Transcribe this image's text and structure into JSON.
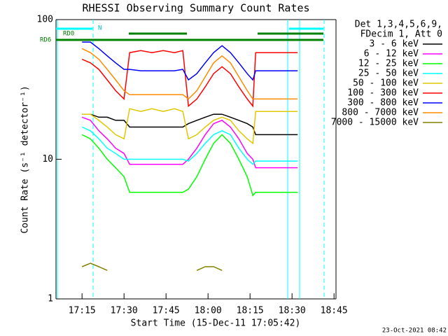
{
  "chart_data": {
    "type": "line",
    "title": "RHESSI Observing Summary Count Rates",
    "xlabel": "Start Time (15-Dec-11 17:05:42)",
    "ylabel": "Count Rate (s⁻¹ detector⁻¹)",
    "legend_title": [
      "Det 1,3,4,5,6,9,",
      "FDecim 1, Att 0"
    ],
    "annotations": [
      "N",
      "RD0",
      "RD6"
    ],
    "timestamp": "23-Oct-2021 08:42",
    "log_y": true,
    "xlim": [
      "17:05:42",
      "18:45:42"
    ],
    "xticks": [
      "17:15",
      "17:30",
      "17:45",
      "18:00",
      "18:15",
      "18:30",
      "18:45"
    ],
    "ylim": [
      1,
      100
    ],
    "yticks": [
      1,
      10,
      100
    ],
    "x": [
      "17:15",
      "17:18",
      "17:21",
      "17:24",
      "17:27",
      "17:30",
      "17:32",
      "17:36",
      "17:40",
      "17:44",
      "17:48",
      "17:51",
      "17:53",
      "17:56",
      "17:59",
      "18:02",
      "18:05",
      "18:08",
      "18:11",
      "18:14",
      "18:16",
      "18:17",
      "18:21",
      "18:25",
      "18:29",
      "18:32"
    ],
    "series": [
      {
        "name": "3 - 6 keV",
        "color": "#000000",
        "values": [
          21,
          21,
          20,
          20,
          19,
          19,
          17,
          17,
          17,
          17,
          17,
          17,
          18,
          19,
          20,
          21,
          21,
          20,
          19,
          18,
          17,
          15,
          15,
          15,
          15,
          15
        ]
      },
      {
        "name": "6 - 12 keV",
        "color": "#ff00ff",
        "values": [
          20,
          19,
          16,
          14,
          12,
          11,
          9.2,
          9.2,
          9.2,
          9.2,
          9.2,
          9.2,
          10,
          12,
          15,
          18,
          19,
          17,
          14,
          11,
          10,
          8.7,
          8.7,
          8.7,
          8.7,
          8.7
        ]
      },
      {
        "name": "12 - 25 keV",
        "color": "#00ff00",
        "values": [
          15,
          14,
          12,
          10,
          8.7,
          7.5,
          5.8,
          5.8,
          5.8,
          5.8,
          5.8,
          5.8,
          6.1,
          7.5,
          10,
          13,
          15,
          13,
          10,
          7.5,
          5.5,
          5.8,
          5.8,
          5.8,
          5.8,
          5.8
        ]
      },
      {
        "name": "25 - 50 keV",
        "color": "#00ffff",
        "values": [
          17,
          16,
          14,
          12,
          11,
          10,
          10,
          10,
          10,
          10,
          10,
          10,
          9.7,
          11,
          13,
          15,
          16,
          15,
          12,
          10,
          9.2,
          9.7,
          9.7,
          9.7,
          9.7,
          9.7
        ]
      },
      {
        "name": "50 - 100 keV",
        "color": "#e0c800",
        "values": [
          21,
          21,
          19,
          17,
          15,
          14,
          23,
          22,
          23,
          22,
          23,
          22,
          14,
          15,
          17,
          19,
          20,
          19,
          16,
          14,
          13,
          22,
          22,
          22,
          22,
          22
        ]
      },
      {
        "name": "100 - 300 keV",
        "color": "#ff0000",
        "values": [
          52,
          49,
          44,
          37,
          31,
          27,
          58,
          60,
          58,
          60,
          58,
          60,
          24,
          27,
          33,
          41,
          46,
          41,
          33,
          27,
          24,
          58,
          58,
          58,
          58,
          58
        ]
      },
      {
        "name": "300 - 800 keV",
        "color": "#0000ff",
        "values": [
          69,
          69,
          62,
          55,
          49,
          44,
          44,
          43,
          43,
          43,
          43,
          44,
          37,
          41,
          49,
          58,
          65,
          58,
          49,
          41,
          37,
          43,
          43,
          43,
          43,
          43
        ]
      },
      {
        "name": "800 - 7000 keV",
        "color": "#ff8c00",
        "values": [
          62,
          58,
          52,
          44,
          37,
          31,
          29,
          29,
          29,
          29,
          29,
          29,
          27,
          31,
          39,
          49,
          55,
          49,
          39,
          31,
          27,
          27,
          27,
          27,
          27,
          27
        ]
      },
      {
        "name": "7000 - 15000 keV",
        "color": "#808000",
        "values": [
          1.7,
          1.8,
          1.7,
          1.6,
          null,
          null,
          null,
          null,
          null,
          null,
          null,
          null,
          null,
          1.6,
          1.7,
          1.7,
          1.6,
          null,
          null,
          null,
          null,
          null,
          null,
          null,
          null,
          null
        ]
      }
    ]
  }
}
